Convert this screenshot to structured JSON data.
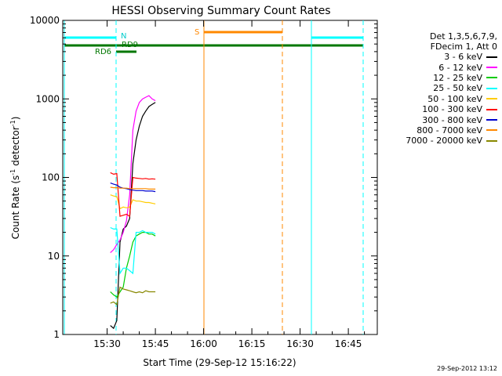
{
  "chart_data": {
    "type": "line",
    "title": "HESSI Observing Summary Count Rates",
    "xlabel": "Start Time (29-Sep-12 15:16:22)",
    "ylabel_main": "Count Rate (s",
    "ylabel_sup1": "-1",
    "ylabel_mid": " detector",
    "ylabel_sup2": "-1",
    "ylabel_end": ")",
    "yscale": "log",
    "ylim": [
      1,
      10000
    ],
    "xlim_minutes": [
      15.27,
      16.9
    ],
    "x_ticks": [
      "15:30",
      "15:45",
      "16:00",
      "16:15",
      "16:30",
      "16:45"
    ],
    "x_tick_minutes": [
      30,
      45,
      60,
      75,
      90,
      105
    ],
    "y_ticks": [
      "1",
      "10",
      "100",
      "1000",
      "10000"
    ],
    "y_tick_values": [
      1,
      10,
      100,
      1000,
      10000
    ],
    "legend": {
      "header1": "Det 1,3,5,6,7,9,",
      "header2": "FDecim 1, Att 0",
      "placement": "right"
    },
    "series": [
      {
        "name": "3 - 6 keV",
        "color": "#000000",
        "x": [
          31,
          32,
          33,
          34,
          35,
          36,
          37,
          38,
          39,
          40,
          41,
          42,
          43,
          44,
          45
        ],
        "y": [
          1.3,
          1.2,
          1.5,
          15,
          22,
          24,
          30,
          150,
          300,
          450,
          600,
          700,
          800,
          850,
          900
        ]
      },
      {
        "name": "6 - 12 keV",
        "color": "#ff00ff",
        "x": [
          31,
          32,
          33,
          34,
          35,
          36,
          37,
          38,
          39,
          40,
          41,
          42,
          43,
          44,
          45
        ],
        "y": [
          11,
          12,
          14,
          16,
          20,
          28,
          60,
          400,
          700,
          900,
          1000,
          1050,
          1100,
          1000,
          950
        ]
      },
      {
        "name": "12 - 25 keV",
        "color": "#00cc00",
        "x": [
          31,
          32,
          33,
          34,
          35,
          36,
          37,
          38,
          39,
          40,
          41,
          42,
          43,
          44,
          45
        ],
        "y": [
          3.5,
          3.2,
          3.0,
          3.5,
          4,
          7,
          10,
          15,
          18,
          19,
          20,
          20,
          19,
          19,
          18
        ]
      },
      {
        "name": "25 - 50 keV",
        "color": "#00ffff",
        "x": [
          31,
          32,
          33,
          34,
          35,
          36,
          37,
          38,
          39,
          40,
          41,
          42,
          43,
          44,
          45
        ],
        "y": [
          23,
          22,
          22,
          6,
          7,
          7,
          6.5,
          6,
          20,
          20,
          21,
          20,
          20,
          20,
          19
        ]
      },
      {
        "name": "50 - 100 keV",
        "color": "#ffcc00",
        "x": [
          31,
          32,
          33,
          34,
          35,
          36,
          37,
          38,
          39,
          40,
          41,
          42,
          43,
          44,
          45
        ],
        "y": [
          60,
          58,
          57,
          40,
          42,
          41,
          42,
          52,
          50,
          50,
          49,
          48,
          48,
          47,
          46
        ]
      },
      {
        "name": "100 - 300 keV",
        "color": "#ff0000",
        "x": [
          31,
          32,
          33,
          34,
          35,
          36,
          37,
          38,
          39,
          40,
          41,
          42,
          43,
          44,
          45
        ],
        "y": [
          115,
          110,
          112,
          32,
          33,
          34,
          32,
          100,
          98,
          97,
          96,
          97,
          95,
          96,
          95
        ]
      },
      {
        "name": "300 - 800 keV",
        "color": "#0000cc",
        "x": [
          31,
          32,
          33,
          34,
          35,
          36,
          37,
          38,
          39,
          40,
          41,
          42,
          43,
          44,
          45
        ],
        "y": [
          85,
          82,
          80,
          75,
          73,
          72,
          70,
          69,
          68,
          68,
          68,
          67,
          67,
          67,
          66
        ]
      },
      {
        "name": "800 - 7000 keV",
        "color": "#ff8800",
        "x": [
          31,
          32,
          33,
          34,
          35,
          36,
          37,
          38,
          39,
          40,
          41,
          42,
          43,
          44,
          45
        ],
        "y": [
          75,
          74,
          74,
          73,
          73,
          73,
          72,
          72,
          72,
          72,
          72,
          72,
          71,
          71,
          71
        ]
      },
      {
        "name": "7000 - 20000 keV",
        "color": "#888800",
        "x": [
          31,
          32,
          33,
          34,
          35,
          36,
          37,
          38,
          39,
          40,
          41,
          42,
          43,
          44,
          45
        ],
        "y": [
          2.5,
          2.6,
          2.4,
          4,
          3.8,
          3.7,
          3.6,
          3.5,
          3.4,
          3.5,
          3.4,
          3.6,
          3.5,
          3.5,
          3.5
        ]
      }
    ],
    "annotations": {
      "N_label": "N",
      "RD9_label": "RD9",
      "RD6_label": "RD6",
      "S_label": "S"
    }
  },
  "datestamp": "29-Sep-2012 13:12"
}
